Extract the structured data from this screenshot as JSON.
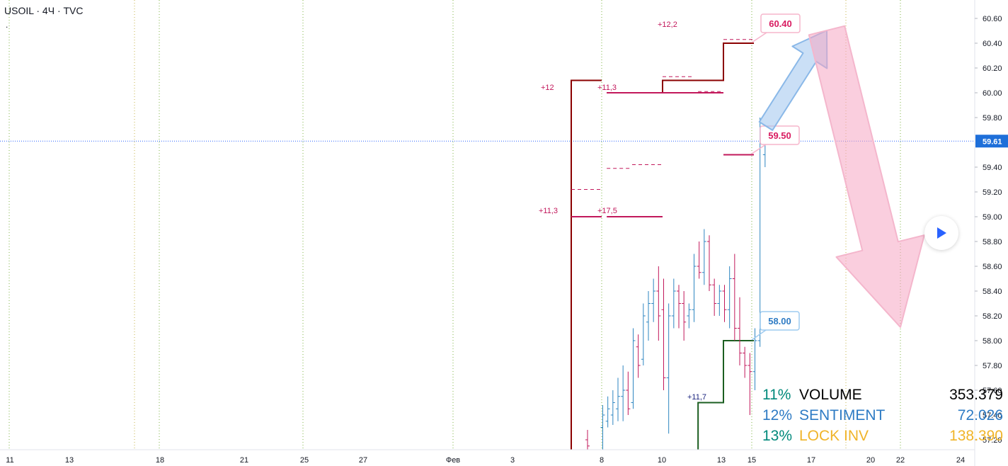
{
  "header": {
    "symbol_line": "USOIL · 4Ч · TVC",
    "sub_mark": "."
  },
  "price_axis": {
    "ticks": [
      "60.60",
      "60.40",
      "60.20",
      "60.00",
      "59.80",
      "59.40",
      "59.20",
      "59.00",
      "58.80",
      "58.60",
      "58.40",
      "58.20",
      "58.00",
      "57.80",
      "57.60",
      "57.40",
      "57.20"
    ],
    "current_price": "59.61"
  },
  "time_axis": {
    "ticks": [
      "11",
      "13",
      "18",
      "21",
      "25",
      "27",
      "Фев",
      "3",
      "8",
      "10",
      "13",
      "15",
      "17",
      "20",
      "22",
      "24"
    ]
  },
  "chart_data": {
    "type": "ohlc",
    "symbol": "USOIL",
    "interval": "4Ч",
    "source": "TVC",
    "ylim": [
      57.12,
      60.72
    ],
    "current_price": 59.61,
    "level_labels": [
      {
        "text": "60.40",
        "price": 60.4,
        "color": "#d81b60"
      },
      {
        "text": "59.50",
        "price": 59.5,
        "color": "#d81b60"
      },
      {
        "text": "58.00",
        "price": 58.0,
        "color": "#2e7bc4"
      }
    ],
    "annotations": [
      {
        "text": "+12,2",
        "color": "#c2185b"
      },
      {
        "text": "+12",
        "color": "#c2185b"
      },
      {
        "text": "+11,3",
        "color": "#c2185b"
      },
      {
        "text": "+11,3",
        "color": "#c2185b"
      },
      {
        "text": "+17,5",
        "color": "#c2185b"
      },
      {
        "text": "+11,7",
        "color": "#1a237e"
      }
    ],
    "step_lines": [
      {
        "name": "maroon",
        "color": "#8b0000",
        "points": [
          [
            "Feb 7 00:00",
            57.1
          ],
          [
            "Feb 7 00:00",
            60.1
          ],
          [
            "Feb 8 00:00",
            60.1
          ]
        ]
      },
      {
        "name": "maroon",
        "color": "#8b0000",
        "points": [
          [
            "Feb 8 04:00",
            60.0
          ],
          [
            "Feb 10 00:00",
            60.0
          ],
          [
            "Feb 10 00:00",
            60.1
          ],
          [
            "Feb 12 00:00",
            60.1
          ],
          [
            "Feb 12 00:00",
            60.4
          ],
          [
            "Feb 13 00:00",
            60.4
          ]
        ]
      },
      {
        "name": "magenta",
        "color": "#c2185b",
        "points": [
          [
            "Feb 8 04:00",
            60.0
          ],
          [
            "Feb 12 00:00",
            60.0
          ]
        ]
      },
      {
        "name": "magenta",
        "color": "#c2185b",
        "points": [
          [
            "Feb 7 00:00",
            59.0
          ],
          [
            "Feb 8 00:00",
            59.0
          ]
        ]
      },
      {
        "name": "magenta",
        "color": "#c2185b",
        "points": [
          [
            "Feb 8 04:00",
            59.0
          ],
          [
            "Feb 10 00:00",
            59.0
          ]
        ]
      },
      {
        "name": "magenta",
        "color": "#c2185b",
        "points": [
          [
            "Feb 12 00:00",
            59.5
          ],
          [
            "Feb 13 00:00",
            59.5
          ]
        ]
      },
      {
        "name": "green",
        "color": "#1b5e20",
        "points": [
          [
            "Feb 11 04:00",
            57.1
          ],
          [
            "Feb 11 04:00",
            57.5
          ],
          [
            "Feb 12 00:00",
            57.5
          ],
          [
            "Feb 12 00:00",
            58.0
          ],
          [
            "Feb 13 00:00",
            58.0
          ]
        ]
      }
    ],
    "dashed_levels": [
      {
        "color": "#c2185b",
        "price": 60.13,
        "from": "Feb 10 00:00",
        "to": "Feb 11 00:00"
      },
      {
        "color": "#c2185b",
        "price": 60.01,
        "from": "Feb 11 04:00",
        "to": "Feb 12 00:00"
      },
      {
        "color": "#c2185b",
        "price": 60.43,
        "from": "Feb 12 00:00",
        "to": "Feb 13 00:00"
      },
      {
        "color": "#c2185b",
        "price": 59.22,
        "from": "Feb 7 00:00",
        "to": "Feb 8 00:00"
      },
      {
        "color": "#c2185b",
        "price": 59.39,
        "from": "Feb 8 04:00",
        "to": "Feb 9 00:00"
      },
      {
        "color": "#c2185b",
        "price": 59.42,
        "from": "Feb 9 00:00",
        "to": "Feb 10 00:00"
      }
    ],
    "bars": [
      {
        "t": "Feb 7 12:00",
        "o": 57.2,
        "h": 57.28,
        "l": 57.1,
        "c": 57.15,
        "dir": "down"
      },
      {
        "t": "Feb 8 00:00",
        "o": 57.3,
        "h": 57.48,
        "l": 57.05,
        "c": 57.4,
        "dir": "up"
      },
      {
        "t": "Feb 8 04:00",
        "o": 57.35,
        "h": 57.55,
        "l": 57.3,
        "c": 57.45,
        "dir": "up"
      },
      {
        "t": "Feb 8 08:00",
        "o": 57.4,
        "h": 57.6,
        "l": 57.32,
        "c": 57.5,
        "dir": "up"
      },
      {
        "t": "Feb 8 12:00",
        "o": 57.45,
        "h": 57.7,
        "l": 57.35,
        "c": 57.55,
        "dir": "up"
      },
      {
        "t": "Feb 8 16:00",
        "o": 57.55,
        "h": 57.8,
        "l": 57.35,
        "c": 57.6,
        "dir": "up"
      },
      {
        "t": "Feb 8 20:00",
        "o": 57.6,
        "h": 57.75,
        "l": 57.4,
        "c": 57.45,
        "dir": "down"
      },
      {
        "t": "Feb 9 00:00",
        "o": 57.5,
        "h": 58.1,
        "l": 57.45,
        "c": 58.0,
        "dir": "up"
      },
      {
        "t": "Feb 9 04:00",
        "o": 57.95,
        "h": 58.05,
        "l": 57.7,
        "c": 57.8,
        "dir": "down"
      },
      {
        "t": "Feb 9 08:00",
        "o": 57.85,
        "h": 58.3,
        "l": 57.8,
        "c": 58.2,
        "dir": "up"
      },
      {
        "t": "Feb 9 12:00",
        "o": 58.15,
        "h": 58.4,
        "l": 58.0,
        "c": 58.3,
        "dir": "up"
      },
      {
        "t": "Feb 9 16:00",
        "o": 58.3,
        "h": 58.5,
        "l": 58.15,
        "c": 58.4,
        "dir": "up"
      },
      {
        "t": "Feb 9 20:00",
        "o": 58.4,
        "h": 58.6,
        "l": 58.0,
        "c": 58.2,
        "dir": "down"
      },
      {
        "t": "Feb 10 00:00",
        "o": 58.25,
        "h": 58.5,
        "l": 57.6,
        "c": 57.7,
        "dir": "down"
      },
      {
        "t": "Feb 10 04:00",
        "o": 57.7,
        "h": 58.3,
        "l": 57.25,
        "c": 58.2,
        "dir": "up"
      },
      {
        "t": "Feb 10 08:00",
        "o": 58.2,
        "h": 58.5,
        "l": 58.1,
        "c": 58.4,
        "dir": "up"
      },
      {
        "t": "Feb 10 12:00",
        "o": 58.4,
        "h": 58.45,
        "l": 58.1,
        "c": 58.3,
        "dir": "down"
      },
      {
        "t": "Feb 10 16:00",
        "o": 58.3,
        "h": 58.4,
        "l": 58.0,
        "c": 58.15,
        "dir": "down"
      },
      {
        "t": "Feb 10 20:00",
        "o": 58.2,
        "h": 58.3,
        "l": 58.1,
        "c": 58.25,
        "dir": "up"
      },
      {
        "t": "Feb 11 00:00",
        "o": 58.25,
        "h": 58.7,
        "l": 58.15,
        "c": 58.6,
        "dir": "up"
      },
      {
        "t": "Feb 11 04:00",
        "o": 58.6,
        "h": 58.8,
        "l": 58.5,
        "c": 58.55,
        "dir": "down"
      },
      {
        "t": "Feb 11 08:00",
        "o": 58.55,
        "h": 58.9,
        "l": 58.45,
        "c": 58.8,
        "dir": "up"
      },
      {
        "t": "Feb 11 12:00",
        "o": 58.8,
        "h": 58.85,
        "l": 58.4,
        "c": 58.45,
        "dir": "down"
      },
      {
        "t": "Feb 11 16:00",
        "o": 58.45,
        "h": 58.5,
        "l": 58.2,
        "c": 58.3,
        "dir": "down"
      },
      {
        "t": "Feb 11 20:00",
        "o": 58.3,
        "h": 58.45,
        "l": 58.2,
        "c": 58.4,
        "dir": "up"
      },
      {
        "t": "Feb 12 00:00",
        "o": 58.4,
        "h": 58.45,
        "l": 58.15,
        "c": 58.25,
        "dir": "down"
      },
      {
        "t": "Feb 12 04:00",
        "o": 58.25,
        "h": 58.6,
        "l": 58.1,
        "c": 58.5,
        "dir": "up"
      },
      {
        "t": "Feb 12 08:00",
        "o": 58.5,
        "h": 58.7,
        "l": 58.0,
        "c": 58.1,
        "dir": "down"
      },
      {
        "t": "Feb 12 12:00",
        "o": 58.1,
        "h": 58.35,
        "l": 57.8,
        "c": 57.9,
        "dir": "down"
      },
      {
        "t": "Feb 12 16:00",
        "o": 57.9,
        "h": 57.95,
        "l": 57.7,
        "c": 57.8,
        "dir": "down"
      },
      {
        "t": "Feb 12 20:00",
        "o": 57.8,
        "h": 57.9,
        "l": 57.4,
        "c": 57.75,
        "dir": "down"
      },
      {
        "t": "Feb 13 00:00",
        "o": 57.75,
        "h": 58.1,
        "l": 57.6,
        "c": 58.0,
        "dir": "up"
      },
      {
        "t": "Feb 13 04:00",
        "o": 58.0,
        "h": 59.8,
        "l": 57.95,
        "c": 59.6,
        "dir": "up"
      },
      {
        "t": "Feb 13 08:00",
        "o": 59.5,
        "h": 59.68,
        "l": 59.4,
        "c": 59.61,
        "dir": "up"
      }
    ],
    "forecast_arrows": [
      {
        "name": "up",
        "color": "#6fa8dc",
        "from": [
          "Feb 13 08:00",
          59.6
        ],
        "to": [
          "Feb 14 12:00",
          60.5
        ]
      },
      {
        "name": "down",
        "color": "#f48fb1",
        "from": [
          "Feb 14 12:00",
          60.5
        ],
        "to": [
          "Feb 16 12:00",
          58.1
        ]
      }
    ]
  },
  "stats": [
    {
      "pct": "11%",
      "name": "VOLUME",
      "value": "353.379",
      "pct_color": "#00897b",
      "name_color": "#000000",
      "value_color": "#000000"
    },
    {
      "pct": "12%",
      "name": "SENTIMENT",
      "value": "72.026",
      "pct_color": "#2e7bc4",
      "name_color": "#2e7bc4",
      "value_color": "#2e7bc4"
    },
    {
      "pct": "13%",
      "name": "LOCK INV",
      "value": "138.390",
      "pct_color": "#00897b",
      "name_color": "#f0b429",
      "value_color": "#f0b429"
    }
  ],
  "colors": {
    "up_bar": "#2e86c1",
    "down_bar": "#c2185b",
    "axis_text": "#131722",
    "price_badge": "#1e6fd9"
  },
  "icons": {
    "play": "play-icon"
  }
}
